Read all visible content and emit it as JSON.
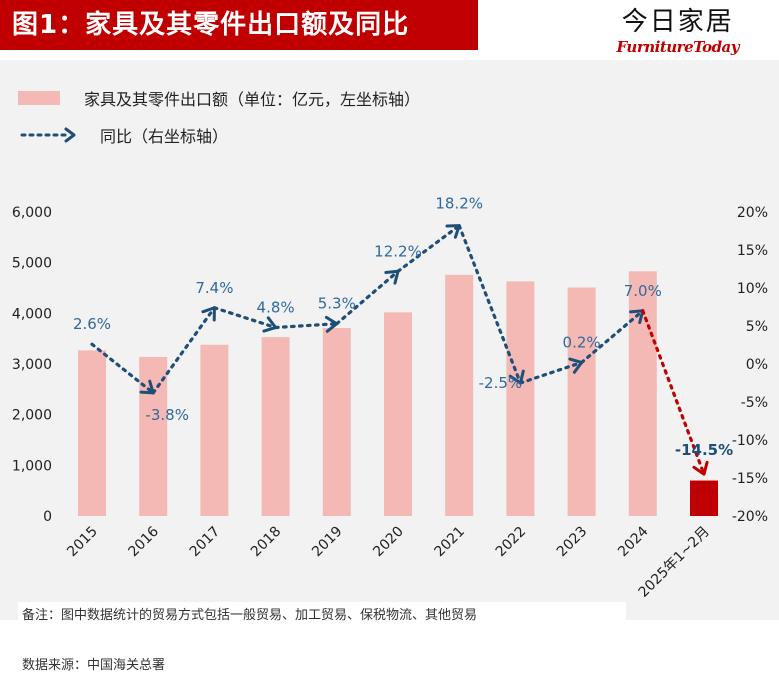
{
  "header": {
    "title": "图1：家具及其零件出口额及同比",
    "brand_cn": "今日家居",
    "brand_en": "FurnitureToday"
  },
  "chart_data": {
    "type": "bar",
    "categories": [
      "2015",
      "2016",
      "2017",
      "2018",
      "2019",
      "2020",
      "2021",
      "2022",
      "2023",
      "2024",
      "2025年1~2月"
    ],
    "series": [
      {
        "name": "家具及其零件出口额（单位：亿元，左坐标轴）",
        "type": "bar",
        "axis": "left",
        "values": [
          3270,
          3140,
          3380,
          3530,
          3710,
          4020,
          4760,
          4630,
          4510,
          4830,
          700
        ],
        "color": "#f4b9b4",
        "highlight_color": "#c00000"
      },
      {
        "name": "同比（右坐标轴）",
        "type": "line",
        "axis": "right",
        "values": [
          2.6,
          -3.8,
          7.4,
          4.8,
          5.3,
          12.2,
          18.2,
          -2.5,
          0.2,
          7.0,
          -14.5
        ],
        "labels": [
          "2.6%",
          "-3.8%",
          "7.4%",
          "4.8%",
          "5.3%",
          "12.2%",
          "18.2%",
          "-2.5%",
          "0.2%",
          "7.0%",
          "-14.5%"
        ],
        "color": "#1f4e79",
        "highlight_color": "#c00000"
      }
    ],
    "left_axis": {
      "ylim": [
        0,
        6000
      ],
      "ticks": [
        "0",
        "1,000",
        "2,000",
        "3,000",
        "4,000",
        "5,000",
        "6,000"
      ]
    },
    "right_axis": {
      "ylim": [
        -20,
        20
      ],
      "ticks": [
        "-20%",
        "-15%",
        "-10%",
        "-5%",
        "0%",
        "5%",
        "10%",
        "15%",
        "20%"
      ]
    },
    "grid": false,
    "legend_position": "top-left"
  },
  "footer": {
    "note": "备注：图中数据统计的贸易方式包括一般贸易、加工贸易、保税物流、其他贸易",
    "source": "数据来源：中国海关总署"
  }
}
